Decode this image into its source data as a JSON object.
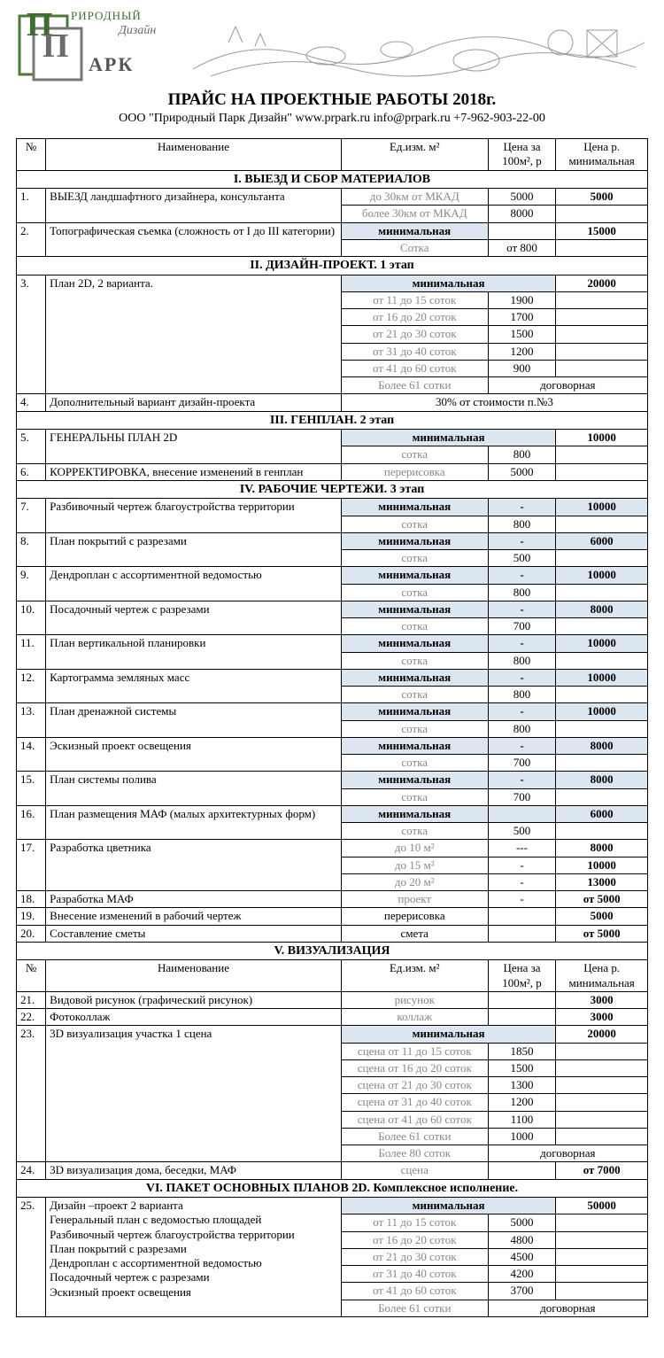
{
  "colors": {
    "band": "#dbe6f1",
    "gray": "#888888"
  },
  "logo": {
    "line1": "РИРОДНЫЙ",
    "line2": "Дизайн",
    "line3": "АРК"
  },
  "title": "ПРАЙС НА ПРОЕКТНЫЕ РАБОТЫ 2018г.",
  "subtitle": "ООО \"Природный Парк Дизайн\"  www.prpark.ru  info@prpark.ru   +7-962-903-22-00",
  "hdr": {
    "num": "№",
    "name": "Наименование",
    "unit": "Ед.изм. м²",
    "p100": "Цена за 100м², р",
    "pmin": "Цена р. минимальная"
  },
  "sec1": "I.  ВЫЕЗД И СБОР МАТЕРИАЛОВ",
  "r1": {
    "n": "1.",
    "name": "ВЫЕЗД ландшафтного дизайнера, консультанта",
    "u1": "до 30км от МКАД",
    "p1": "5000",
    "m1": "5000",
    "u2": "более 30км от МКАД",
    "p2": "8000",
    "m2": ""
  },
  "r2": {
    "n": "2.",
    "name": "Топографическая съемка (сложность от I до III категории)",
    "u1": "минимальная",
    "p1": "",
    "m1": "15000",
    "u2": "Сотка",
    "p2": "от 800",
    "m2": ""
  },
  "sec2": "II.  ДИЗАЙН-ПРОЕКТ. 1 этап",
  "r3": {
    "n": "3.",
    "name": "План 2D, 2 варианта.",
    "rows": [
      {
        "u": "минимальная",
        "p": "",
        "m": "20000",
        "band": true,
        "bold": true
      },
      {
        "u": "от 11 до 15 соток",
        "p": "1900",
        "m": ""
      },
      {
        "u": "от 16 до 20 соток",
        "p": "1700",
        "m": ""
      },
      {
        "u": "от 21 до 30 соток",
        "p": "1500",
        "m": ""
      },
      {
        "u": "от 31 до 40 соток",
        "p": "1200",
        "m": ""
      },
      {
        "u": "от 41 до 60 соток",
        "p": "900",
        "m": ""
      }
    ],
    "last": {
      "u": "Более 61 сотки",
      "pm": "договорная"
    }
  },
  "r4": {
    "n": "4.",
    "name": "Дополнительный вариант дизайн-проекта",
    "merged": "30% от стоимости п.№3"
  },
  "sec3": "III.  ГЕНПЛАН. 2 этап",
  "r5": {
    "n": "5.",
    "name": "ГЕНЕРАЛЬНЫ ПЛАН 2D",
    "u1": "минимальная",
    "p1": "",
    "m1": "10000",
    "u2": "сотка",
    "p2": "800",
    "m2": ""
  },
  "r6": {
    "n": "6.",
    "name": "КОРРЕКТИРОВКА, внесение изменений в генплан",
    "u": "перерисовка",
    "p": "5000",
    "m": ""
  },
  "sec4": "IV.  РАБОЧИЕ ЧЕРТЕЖИ. 3 этап",
  "rc": [
    {
      "n": "7.",
      "name": "Разбивочный чертеж благоустройства территории",
      "m": "10000",
      "p2": "800"
    },
    {
      "n": "8.",
      "name": "План покрытий с разрезами",
      "m": "6000",
      "p2": "500"
    },
    {
      "n": "9.",
      "name": "Дендроплан с ассортиментной ведомостью",
      "m": "10000",
      "p2": "800"
    },
    {
      "n": "10.",
      "name": "Посадочный чертеж с разрезами",
      "m": "8000",
      "p2": "700"
    },
    {
      "n": "11.",
      "name": "План вертикальной планировки",
      "m": "10000",
      "p2": "800"
    },
    {
      "n": "12.",
      "name": "Картограмма земляных масс",
      "m": "10000",
      "p2": "800"
    },
    {
      "n": "13.",
      "name": "План дренажной системы",
      "m": "10000",
      "p2": "800"
    },
    {
      "n": "14.",
      "name": "Эскизный проект освещения",
      "m": "8000",
      "p2": "700"
    },
    {
      "n": "15.",
      "name": "План системы полива",
      "m": "8000",
      "p2": "700"
    }
  ],
  "rc_u1": "минимальная",
  "rc_p1": "-",
  "rc_u2": "сотка",
  "r16": {
    "n": "16.",
    "name": "План  размещения  МАФ  (малых  архитектурных форм)",
    "u1": "минимальная",
    "p1": "",
    "m1": "6000",
    "u2": "сотка",
    "p2": "500",
    "m2": ""
  },
  "r17": {
    "n": "17.",
    "name": "Разработка цветника",
    "rows": [
      {
        "u": "до 10 м²",
        "p": "---",
        "m": "8000"
      },
      {
        "u": "до 15 м²",
        "p": "-",
        "m": "10000"
      },
      {
        "u": "до 20 м²",
        "p": "-",
        "m": "13000"
      }
    ]
  },
  "r18": {
    "n": "18.",
    "name": "Разработка МАФ",
    "u": "проект",
    "p": "-",
    "m": "от 5000"
  },
  "r19": {
    "n": "19.",
    "name": "Внесение изменений в рабочий чертеж",
    "u": "перерисовка",
    "p": "",
    "m": "5000"
  },
  "r20": {
    "n": "20.",
    "name": "Составление сметы",
    "u": "смета",
    "p": "",
    "m": "от 5000"
  },
  "sec5": "V.  ВИЗУАЛИЗАЦИЯ",
  "r21": {
    "n": "21.",
    "name": "Видовой рисунок (графический рисунок)",
    "u": "рисунок",
    "p": "",
    "m": "3000"
  },
  "r22": {
    "n": "22.",
    "name": "Фотоколлаж",
    "u": "коллаж",
    "p": "",
    "m": "3000"
  },
  "r23": {
    "n": "23.",
    "name": "3D визуализация участка 1 сцена",
    "rows": [
      {
        "u": "минимальная",
        "p": "",
        "m": "20000",
        "band": true,
        "bold": true
      },
      {
        "u": "сцена от 11 до 15 соток",
        "p": "1850",
        "m": ""
      },
      {
        "u": "сцена от 16 до 20 соток",
        "p": "1500",
        "m": ""
      },
      {
        "u": "сцена от 21 до 30 соток",
        "p": "1300",
        "m": ""
      },
      {
        "u": "сцена от 31 до 40 соток",
        "p": "1200",
        "m": ""
      },
      {
        "u": "сцена от 41 до 60 соток",
        "p": "1100",
        "m": ""
      },
      {
        "u": "Более 61 сотки",
        "p": "1000",
        "m": ""
      }
    ],
    "last": {
      "u": "Более 80 соток",
      "pm": "договорная"
    }
  },
  "r24": {
    "n": "24.",
    "name": "3D визуализация дома, беседки, МАФ",
    "u": "сцена",
    "p": "",
    "m": "от 7000"
  },
  "sec6": "VI.  ПАКЕТ ОСНОВНЫХ ПЛАНОВ 2D. Комплексное исполнение.",
  "r25": {
    "n": "25.",
    "lines": [
      "Дизайн –проект 2 варианта",
      "Генеральный план с ведомостью площадей",
      "Разбивочный чертеж благоустройства территории",
      "План покрытий с разрезами",
      "Дендроплан с ассортиментной ведомостью",
      "Посадочный чертеж с разрезами",
      "Эскизный проект освещения"
    ],
    "rows": [
      {
        "u": "минимальная",
        "p": "",
        "m": "50000",
        "band": true,
        "bold": true
      },
      {
        "u": "от 11 до 15 соток",
        "p": "5000",
        "m": ""
      },
      {
        "u": "от 16 до 20 соток",
        "p": "4800",
        "m": ""
      },
      {
        "u": "от 21 до 30 соток",
        "p": "4500",
        "m": ""
      },
      {
        "u": "от 31 до 40 соток",
        "p": "4200",
        "m": ""
      },
      {
        "u": "от 41 до 60 соток",
        "p": "3700",
        "m": ""
      }
    ],
    "last": {
      "u": "Более 61 сотки",
      "pm": "договорная"
    }
  }
}
